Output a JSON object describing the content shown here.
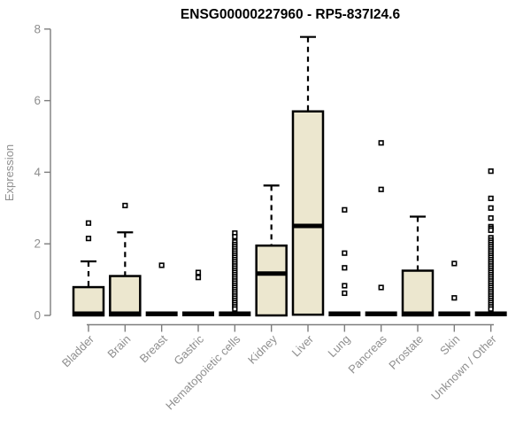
{
  "page": {
    "background_color": "#ffffff"
  },
  "chart_data": {
    "type": "box",
    "title": "ENSG00000227960 - RP5-837I24.6",
    "xlabel": "",
    "ylabel": "Expression",
    "ylim": [
      0,
      8
    ],
    "yticks": [
      0,
      2,
      4,
      6,
      8
    ],
    "grid": false,
    "legend": "none",
    "box_fill_color": "#ece7cf",
    "box_edge_color": "#000000",
    "median_color": "#000000",
    "outlier_marker": "open-square",
    "axis_color": "#7d7d7d",
    "tick_label_color": "#8f8f8f",
    "title_color": "#000000",
    "categories": [
      "Bladder",
      "Brain",
      "Breast",
      "Gastric",
      "Hematopoietic cells",
      "Kidney",
      "Liver",
      "Lung",
      "Pancreas",
      "Prostate",
      "Skin",
      "Unknown / Other"
    ],
    "series": [
      {
        "name": "Bladder",
        "q1": 0,
        "median": 0,
        "q3": 0.79,
        "whisker_low": 0,
        "whisker_high": 1.51,
        "outliers": [
          2.58,
          2.15
        ]
      },
      {
        "name": "Brain",
        "q1": 0,
        "median": 0,
        "q3": 1.1,
        "whisker_low": 0,
        "whisker_high": 2.32,
        "outliers": [
          3.07
        ]
      },
      {
        "name": "Breast",
        "q1": 0,
        "median": 0,
        "q3": 0,
        "whisker_low": 0,
        "whisker_high": 0,
        "outliers": [
          1.4
        ]
      },
      {
        "name": "Gastric",
        "q1": 0,
        "median": 0,
        "q3": 0,
        "whisker_low": 0,
        "whisker_high": 0,
        "outliers": [
          1.2,
          1.06
        ]
      },
      {
        "name": "Hematopoietic cells",
        "q1": 0,
        "median": 0,
        "q3": 0,
        "whisker_low": 0,
        "whisker_high": 0,
        "outliers": [
          2.3,
          2.2,
          2.05,
          1.98,
          1.92,
          1.86,
          1.8,
          1.74,
          1.68,
          1.62,
          1.56,
          1.5,
          1.44,
          1.38,
          1.32,
          1.26,
          1.2,
          1.14,
          1.08,
          1.02,
          0.96,
          0.9,
          0.84,
          0.78,
          0.72,
          0.66,
          0.6,
          0.54,
          0.48,
          0.42,
          0.36,
          0.3,
          0.24,
          0.18
        ]
      },
      {
        "name": "Kidney",
        "q1": 0,
        "median": 1.17,
        "q3": 1.95,
        "whisker_low": 0,
        "whisker_high": 3.63,
        "outliers": []
      },
      {
        "name": "Liver",
        "q1": 0.02,
        "median": 2.5,
        "q3": 5.7,
        "whisker_low": 0.02,
        "whisker_high": 7.78,
        "outliers": []
      },
      {
        "name": "Lung",
        "q1": 0,
        "median": 0,
        "q3": 0,
        "whisker_low": 0,
        "whisker_high": 0,
        "outliers": [
          2.95,
          1.74,
          1.33,
          0.83,
          0.62
        ]
      },
      {
        "name": "Pancreas",
        "q1": 0,
        "median": 0,
        "q3": 0,
        "whisker_low": 0,
        "whisker_high": 0,
        "outliers": [
          4.82,
          3.52,
          0.78
        ]
      },
      {
        "name": "Prostate",
        "q1": 0,
        "median": 0,
        "q3": 1.25,
        "whisker_low": 0,
        "whisker_high": 2.76,
        "outliers": []
      },
      {
        "name": "Skin",
        "q1": 0,
        "median": 0,
        "q3": 0,
        "whisker_low": 0,
        "whisker_high": 0,
        "outliers": [
          1.45,
          0.49
        ]
      },
      {
        "name": "Unknown / Other",
        "q1": 0,
        "median": 0,
        "q3": 0,
        "whisker_low": 0,
        "whisker_high": 0,
        "outliers": [
          4.03,
          3.27,
          3.0,
          2.72,
          2.48,
          2.43,
          2.38,
          2.17,
          2.1,
          2.04,
          1.98,
          1.92,
          1.86,
          1.8,
          1.74,
          1.68,
          1.62,
          1.56,
          1.5,
          1.44,
          1.38,
          1.32,
          1.26,
          1.2,
          1.14,
          1.08,
          1.02,
          0.96,
          0.9,
          0.84,
          0.78,
          0.72,
          0.66,
          0.6,
          0.54,
          0.48,
          0.42,
          0.36,
          0.3,
          0.24,
          0.18
        ]
      }
    ]
  }
}
